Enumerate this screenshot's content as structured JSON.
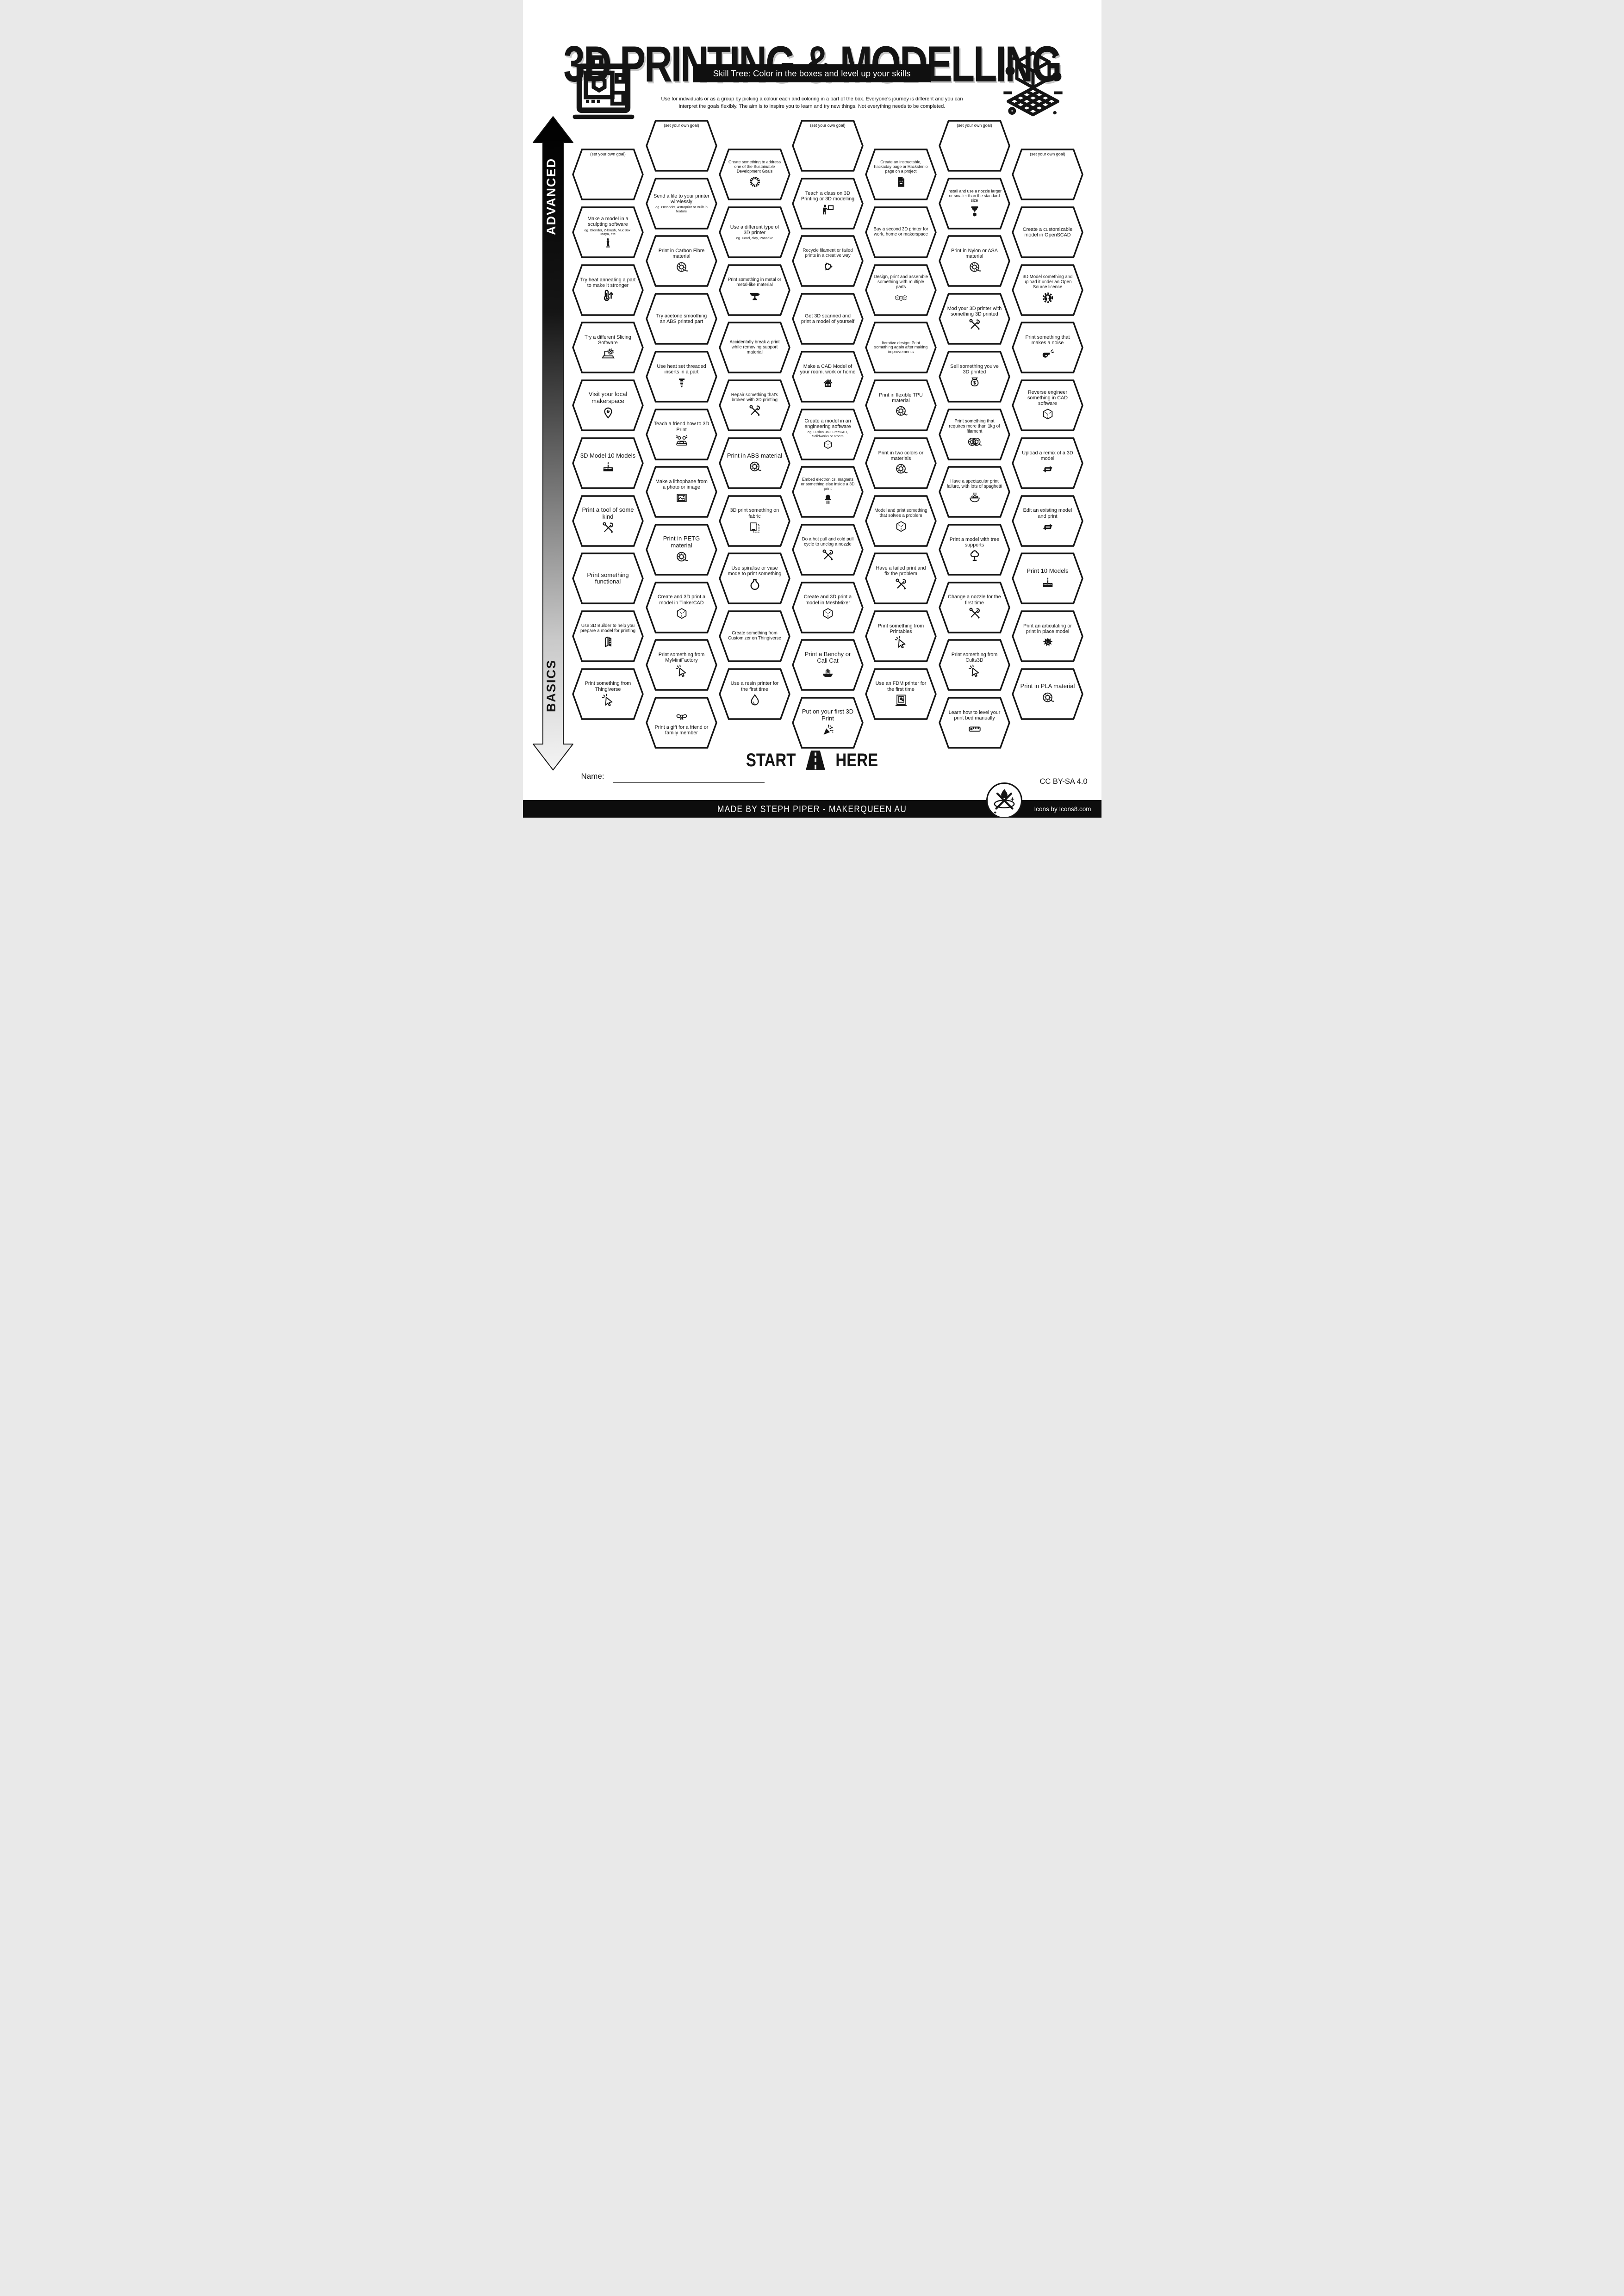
{
  "title": "3D PRINTING & MODELLING",
  "subtitle": "Skill Tree:  Color in the boxes and level up your skills",
  "description": "Use for individuals or as a group by picking a colour each and coloring in a part of the box.  Everyone's journey is different and you can interpret the goals flexibly.  The aim is to inspire you to learn and try new things. Not everything needs to be completed.",
  "axis": {
    "advanced": "ADVANCED",
    "basics": "BASICS"
  },
  "goal_label": "(set your own goal)",
  "start_here": {
    "start": "START",
    "here": "HERE"
  },
  "name_label": "Name:",
  "footer": {
    "made_by": "MADE BY STEPH PIPER  -  MAKERQUEEN AU",
    "license": "CC BY-SA 4.0",
    "icons_credit": "Icons by Icons8.com"
  },
  "colors": {
    "ink": "#141414",
    "paper": "#ffffff"
  },
  "hexes": [
    {
      "c": 0,
      "r": 0,
      "goal": true
    },
    {
      "c": 0,
      "r": 1,
      "label": "Make a model in a sculpting software",
      "sub": "eg. Blender, Z-brush, MudBox, Maya, etc",
      "icon": "statue"
    },
    {
      "c": 0,
      "r": 2,
      "label": "Try heat annealing a part to make it stronger",
      "icon": "thermometer-up"
    },
    {
      "c": 0,
      "r": 3,
      "label": "Try a different Slicing Software",
      "icon": "laptop-gear"
    },
    {
      "c": 0,
      "r": 4,
      "label": "Visit your local makerspace",
      "icon": "map-pin"
    },
    {
      "c": 0,
      "r": 5,
      "label": "3D Model 10 Models",
      "icon": "cake"
    },
    {
      "c": 0,
      "r": 6,
      "label": "Print a tool of some kind",
      "icon": "crossed-tools"
    },
    {
      "c": 0,
      "r": 7,
      "label": "Print something functional"
    },
    {
      "c": 0,
      "r": 8,
      "label": "Use 3D Builder to help you prepare a model for printing",
      "icon": "3d-builder"
    },
    {
      "c": 0,
      "r": 9,
      "label": "Print something from Thingiverse",
      "icon": "click-cursor"
    },
    {
      "c": 1,
      "r": 0,
      "goal": true
    },
    {
      "c": 1,
      "r": 1,
      "label": "Send a file to your printer wirelessly",
      "sub": "eg. Octoprint, Astroprint or Built-in feature"
    },
    {
      "c": 1,
      "r": 2,
      "label": "Print in Carbon Fibre material",
      "icon": "filament-spool"
    },
    {
      "c": 1,
      "r": 3,
      "label": "Try acetone smoothing an ABS printed part"
    },
    {
      "c": 1,
      "r": 4,
      "label": "Use heat set threaded inserts in a part",
      "icon": "screw"
    },
    {
      "c": 1,
      "r": 5,
      "label": "Teach a friend how to 3D Print",
      "icon": "friends-laptop"
    },
    {
      "c": 1,
      "r": 6,
      "label": "Make a lithophane from a photo or image",
      "icon": "photo-frame"
    },
    {
      "c": 1,
      "r": 7,
      "label": "Print in PETG material",
      "icon": "filament-spool"
    },
    {
      "c": 1,
      "r": 8,
      "label": "Create and 3D print a model in TinkerCAD",
      "icon": "cube"
    },
    {
      "c": 1,
      "r": 9,
      "label": "Print something from MyMiniFactory",
      "icon": "click-cursor"
    },
    {
      "c": 1,
      "r": 10,
      "label": "Print a gift for a friend or family member",
      "icon": "gift-bow",
      "icon_top": true
    },
    {
      "c": 2,
      "r": 0,
      "label": "Create something to address one of the Sustainable Development Goals",
      "icon": "sdg-wheel"
    },
    {
      "c": 2,
      "r": 1,
      "label": "Use a different type of 3D printer",
      "sub": "eg. Food, clay, Pancake"
    },
    {
      "c": 2,
      "r": 2,
      "label": "Print something in metal or metal-like material",
      "icon": "anvil"
    },
    {
      "c": 2,
      "r": 3,
      "label": "Accidentally break a print while removing support material"
    },
    {
      "c": 2,
      "r": 4,
      "label": "Repair something that's broken with 3D printing",
      "icon": "crossed-tools"
    },
    {
      "c": 2,
      "r": 5,
      "label": "Print in ABS material",
      "icon": "filament-spool"
    },
    {
      "c": 2,
      "r": 6,
      "label": "3D print something on fabric",
      "icon": "fabric"
    },
    {
      "c": 2,
      "r": 7,
      "label": "Use spiralise or vase mode to print something",
      "icon": "vase"
    },
    {
      "c": 2,
      "r": 8,
      "label": "Create something from Customizer on Thingiverse"
    },
    {
      "c": 2,
      "r": 9,
      "label": "Use a resin printer for the first time",
      "icon": "water-drop"
    },
    {
      "c": 3,
      "r": 0,
      "goal": true
    },
    {
      "c": 3,
      "r": 1,
      "label": "Teach a class on 3D Printing or 3D modelling",
      "icon": "teacher-board"
    },
    {
      "c": 3,
      "r": 2,
      "label": "Recycle filament or failed prints in a creative way",
      "icon": "recycle"
    },
    {
      "c": 3,
      "r": 3,
      "label": "Get 3D scanned and print a model of yourself"
    },
    {
      "c": 3,
      "r": 4,
      "label": "Make a CAD Model of your room, work or home",
      "icon": "house"
    },
    {
      "c": 3,
      "r": 5,
      "label": "Create a model in an engineering software",
      "sub": "eg. Fusion 360, FreeCAD, Solidworks or others",
      "icon": "cube"
    },
    {
      "c": 3,
      "r": 6,
      "label": "Embed electronics, magnets or something else inside a 3D print",
      "icon": "led"
    },
    {
      "c": 3,
      "r": 7,
      "label": "Do a hot pull and cold pull cycle to unclog a nozzle",
      "icon": "crossed-tools"
    },
    {
      "c": 3,
      "r": 8,
      "label": "Create and 3D print a model in MeshMixer",
      "icon": "cube"
    },
    {
      "c": 3,
      "r": 9,
      "label": "Print a Benchy or Cali Cat",
      "icon": "benchy-boat"
    },
    {
      "c": 3,
      "r": 10,
      "label": "Put on your first 3D Print",
      "icon": "party-popper"
    },
    {
      "c": 4,
      "r": 0,
      "label": "Create an instructable, hackaday page or Hackster.io page on a project",
      "icon": "document-smiley"
    },
    {
      "c": 4,
      "r": 1,
      "label": "Buy a second 3D printer for work, home or makerspace"
    },
    {
      "c": 4,
      "r": 2,
      "label": "Design, print and assemble something with multiple parts",
      "icon": "three-cubes"
    },
    {
      "c": 4,
      "r": 3,
      "label": "Iterative design: Print something again after making improvements"
    },
    {
      "c": 4,
      "r": 4,
      "label": "Print in flexible TPU material",
      "icon": "filament-spool"
    },
    {
      "c": 4,
      "r": 5,
      "label": "Print in two colors or materials",
      "icon": "filament-spool"
    },
    {
      "c": 4,
      "r": 6,
      "label": "Model and print something that solves a problem",
      "icon": "cube"
    },
    {
      "c": 4,
      "r": 7,
      "label": "Have a failed print and fix the problem",
      "icon": "crossed-tools"
    },
    {
      "c": 4,
      "r": 8,
      "label": "Print something from Printables",
      "icon": "click-cursor"
    },
    {
      "c": 4,
      "r": 9,
      "label": "Use an FDM printer for the first time",
      "icon": "fdm-printer"
    },
    {
      "c": 5,
      "r": 0,
      "goal": true
    },
    {
      "c": 5,
      "r": 1,
      "label": "Install and use a nozzle larger or smaller than the standard size",
      "icon": "nozzle"
    },
    {
      "c": 5,
      "r": 2,
      "label": "Print in Nylon or ASA material",
      "icon": "filament-spool"
    },
    {
      "c": 5,
      "r": 3,
      "label": "Mod your 3D printer with something 3D printed",
      "icon": "crossed-tools"
    },
    {
      "c": 5,
      "r": 4,
      "label": "Sell something you've 3D printed",
      "icon": "money-bag"
    },
    {
      "c": 5,
      "r": 5,
      "label": "Print something that requires more than 1kg of filament",
      "icon": "two-spools"
    },
    {
      "c": 5,
      "r": 6,
      "label": "Have a spectacular print failure, with lots of spaghetti",
      "icon": "spaghetti-bowl"
    },
    {
      "c": 5,
      "r": 7,
      "label": "Print a model with tree supports",
      "icon": "tree"
    },
    {
      "c": 5,
      "r": 8,
      "label": "Change a nozzle for the first time",
      "icon": "crossed-tools"
    },
    {
      "c": 5,
      "r": 9,
      "label": "Print something from Cults3D",
      "icon": "click-cursor"
    },
    {
      "c": 5,
      "r": 10,
      "label": "Learn how to level your print bed manually",
      "icon": "ruler"
    },
    {
      "c": 6,
      "r": 0,
      "goal": true
    },
    {
      "c": 6,
      "r": 1,
      "label": "Create a customizable model in OpenSCAD"
    },
    {
      "c": 6,
      "r": 2,
      "label": "3D Model something and upload it under an Open Source licence",
      "icon": "open-source-gear"
    },
    {
      "c": 6,
      "r": 3,
      "label": "Print something that makes a noise",
      "icon": "whistle"
    },
    {
      "c": 6,
      "r": 4,
      "label": "Reverse engineer something in CAD software",
      "icon": "cube"
    },
    {
      "c": 6,
      "r": 5,
      "label": "Upload a remix of a 3D model",
      "icon": "remix-arrows"
    },
    {
      "c": 6,
      "r": 6,
      "label": "Edit an existing model and print",
      "icon": "remix-arrows"
    },
    {
      "c": 6,
      "r": 7,
      "label": "Print 10 Models",
      "icon": "cake"
    },
    {
      "c": 6,
      "r": 8,
      "label": "Print an articulating or print in place model",
      "icon": "dragon"
    },
    {
      "c": 6,
      "r": 9,
      "label": "Print in PLA material",
      "icon": "filament-spool"
    }
  ]
}
